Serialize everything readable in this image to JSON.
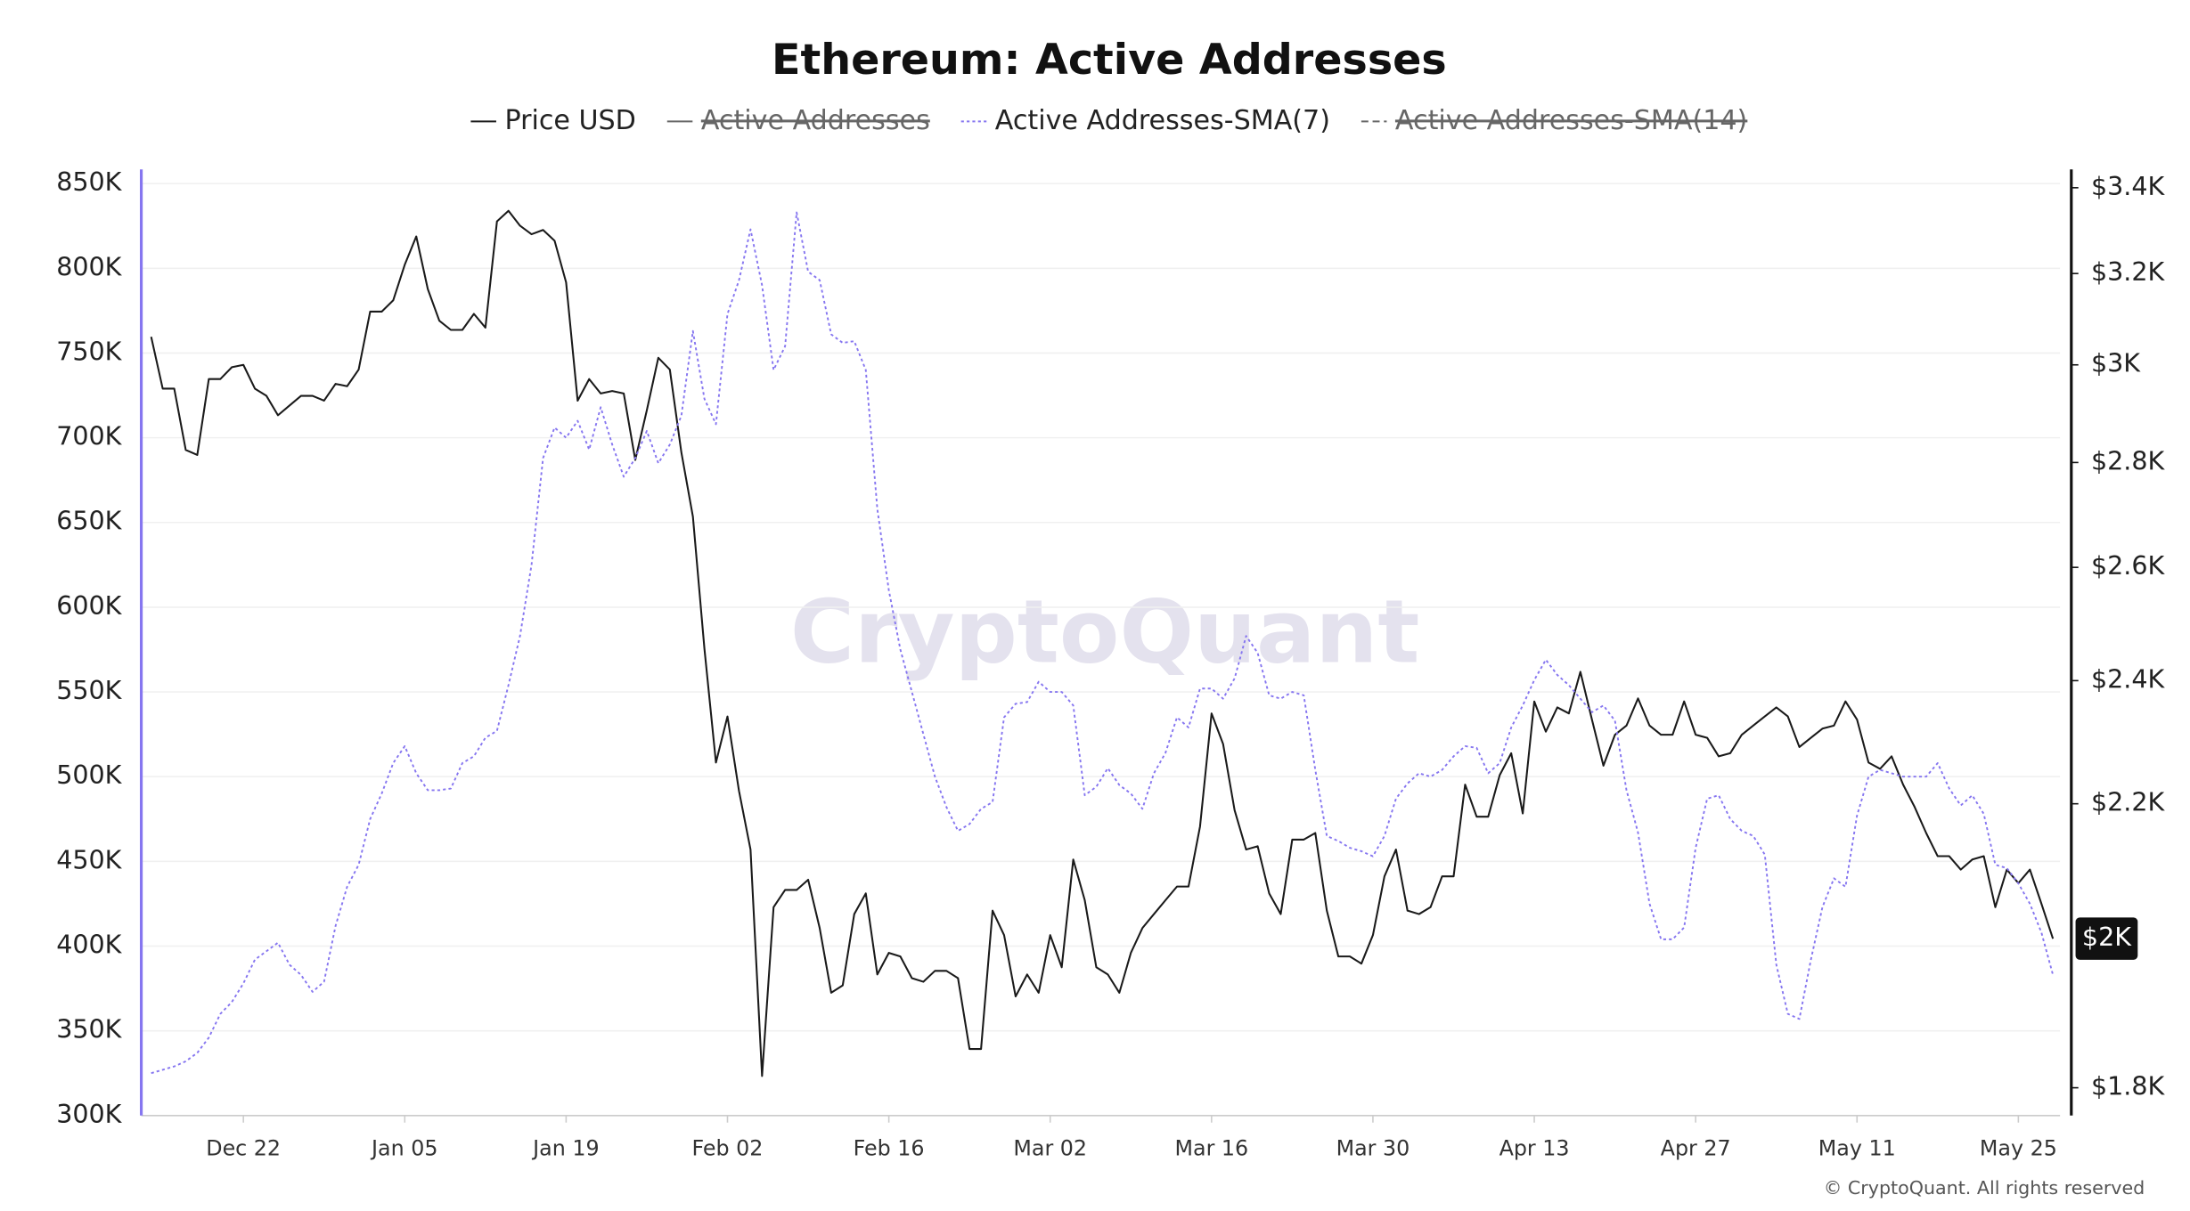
{
  "chart_data": {
    "type": "line",
    "title": "Ethereum: Active Addresses",
    "watermark": "CryptoQuant",
    "copyright": "© CryptoQuant. All rights reserved",
    "categories": [
      "Dec 14",
      "Dec 15",
      "Dec 16",
      "Dec 17",
      "Dec 18",
      "Dec 19",
      "Dec 20",
      "Dec 21",
      "Dec 22",
      "Dec 23",
      "Dec 24",
      "Dec 25",
      "Dec 26",
      "Dec 27",
      "Dec 28",
      "Dec 29",
      "Dec 30",
      "Dec 31",
      "Jan 01",
      "Jan 02",
      "Jan 03",
      "Jan 04",
      "Jan 05",
      "Jan 06",
      "Jan 07",
      "Jan 08",
      "Jan 09",
      "Jan 10",
      "Jan 11",
      "Jan 12",
      "Jan 13",
      "Jan 14",
      "Jan 15",
      "Jan 16",
      "Jan 17",
      "Jan 18",
      "Jan 19",
      "Jan 20",
      "Jan 21",
      "Jan 22",
      "Jan 23",
      "Jan 24",
      "Jan 25",
      "Jan 26",
      "Jan 27",
      "Jan 28",
      "Jan 29",
      "Jan 30",
      "Jan 31",
      "Feb 01",
      "Feb 02",
      "Feb 03",
      "Feb 04",
      "Feb 05",
      "Feb 06",
      "Feb 07",
      "Feb 08",
      "Feb 09",
      "Feb 10",
      "Feb 11",
      "Feb 12",
      "Feb 13",
      "Feb 14",
      "Feb 15",
      "Feb 16",
      "Feb 17",
      "Feb 18",
      "Feb 19",
      "Feb 20",
      "Feb 21",
      "Feb 22",
      "Feb 23",
      "Feb 24",
      "Feb 25",
      "Feb 26",
      "Feb 27",
      "Feb 28",
      "Mar 01",
      "Mar 02",
      "Mar 03",
      "Mar 04",
      "Mar 05",
      "Mar 06",
      "Mar 07",
      "Mar 08",
      "Mar 09",
      "Mar 10",
      "Mar 11",
      "Mar 12",
      "Mar 13",
      "Mar 14",
      "Mar 15",
      "Mar 16",
      "Mar 17",
      "Mar 18",
      "Mar 19",
      "Mar 20",
      "Mar 21",
      "Mar 22",
      "Mar 23",
      "Mar 24",
      "Mar 25",
      "Mar 26",
      "Mar 27",
      "Mar 28",
      "Mar 29",
      "Mar 30",
      "Mar 31",
      "Apr 01",
      "Apr 02",
      "Apr 03",
      "Apr 04",
      "Apr 05",
      "Apr 06",
      "Apr 07",
      "Apr 08",
      "Apr 09",
      "Apr 10",
      "Apr 11",
      "Apr 12",
      "Apr 13",
      "Apr 14",
      "Apr 15",
      "Apr 16",
      "Apr 17",
      "Apr 18",
      "Apr 19",
      "Apr 20",
      "Apr 21",
      "Apr 22",
      "Apr 23",
      "Apr 24",
      "Apr 25",
      "Apr 26",
      "Apr 27",
      "Apr 28",
      "Apr 29",
      "Apr 30",
      "May 01",
      "May 02",
      "May 03",
      "May 04",
      "May 05",
      "May 06",
      "May 07",
      "May 08",
      "May 09",
      "May 10",
      "May 11",
      "May 12",
      "May 13",
      "May 14",
      "May 15",
      "May 16",
      "May 17",
      "May 18",
      "May 19",
      "May 20",
      "May 21",
      "May 22",
      "May 23",
      "May 24",
      "May 25",
      "May 26",
      "May 27",
      "May 28"
    ],
    "xticks": [
      "Dec 22",
      "Jan 05",
      "Jan 19",
      "Feb 02",
      "Feb 16",
      "Mar 02",
      "Mar 16",
      "Mar 30",
      "Apr 13",
      "Apr 27",
      "May 11",
      "May 25"
    ],
    "series": [
      {
        "name": "Price USD",
        "color": "#1a1a1a",
        "style": "solid",
        "axis": "y2",
        "values": [
          3060,
          2950,
          2950,
          2825,
          2815,
          2970,
          2970,
          2995,
          3000,
          2950,
          2935,
          2895,
          2915,
          2935,
          2935,
          2925,
          2960,
          2955,
          2990,
          3115,
          3115,
          3140,
          3220,
          3285,
          3165,
          3095,
          3075,
          3075,
          3110,
          3080,
          3320,
          3345,
          3310,
          3290,
          3300,
          3275,
          3180,
          2925,
          2970,
          2940,
          2945,
          2940,
          2805,
          2905,
          3015,
          2990,
          2820,
          2695,
          2455,
          2265,
          2340,
          2220,
          2130,
          1815,
          2045,
          2070,
          2070,
          2085,
          2015,
          1925,
          1935,
          2035,
          2065,
          1950,
          1980,
          1975,
          1945,
          1940,
          1955,
          1955,
          1945,
          1850,
          1850,
          2040,
          2005,
          1920,
          1950,
          1925,
          2005,
          1960,
          2115,
          2055,
          1960,
          1950,
          1925,
          1980,
          2015,
          2035,
          2055,
          2075,
          2075,
          2165,
          2345,
          2295,
          2190,
          2130,
          2135,
          2065,
          2035,
          2145,
          2145,
          2155,
          2040,
          1975,
          1975,
          1965,
          2005,
          2090,
          2130,
          2040,
          2035,
          2045,
          2090,
          2090,
          2230,
          2180,
          2180,
          2245,
          2280,
          2185,
          2365,
          2315,
          2355,
          2345,
          2415,
          2335,
          2260,
          2310,
          2325,
          2370,
          2325,
          2310,
          2310,
          2365,
          2310,
          2305,
          2275,
          2280,
          2310,
          2325,
          2340,
          2355,
          2340,
          2290,
          2305,
          2320,
          2325,
          2365,
          2335,
          2265,
          2255,
          2275,
          2230,
          2195,
          2155,
          2120,
          2120,
          2100,
          2115,
          2120,
          2045,
          2100,
          2080,
          2100,
          2050,
          2000
        ]
      },
      {
        "name": "Active Addresses",
        "color": "#555555",
        "style": "solid",
        "hidden": true
      },
      {
        "name": "Active Addresses-SMA(7)",
        "color": "#8676f0",
        "style": "dotted",
        "values": [
          325000,
          327000,
          329000,
          332000,
          337000,
          346000,
          360000,
          367000,
          378000,
          392000,
          397000,
          402000,
          389000,
          383000,
          373000,
          379000,
          412000,
          435000,
          448000,
          475000,
          490000,
          508000,
          518000,
          502000,
          492000,
          492000,
          493000,
          508000,
          512000,
          523000,
          527000,
          554000,
          583000,
          625000,
          688000,
          706000,
          700000,
          710000,
          693000,
          718000,
          696000,
          677000,
          688000,
          704000,
          685000,
          696000,
          713000,
          763000,
          723000,
          708000,
          773000,
          793000,
          823000,
          790000,
          740000,
          754000,
          833000,
          798000,
          793000,
          761000,
          756000,
          757000,
          740000,
          658000,
          610000,
          575000,
          550000,
          525000,
          500000,
          482000,
          468000,
          472000,
          481000,
          485000,
          535000,
          543000,
          544000,
          556000,
          550000,
          550000,
          542000,
          489000,
          494000,
          505000,
          495000,
          490000,
          481000,
          502000,
          514000,
          535000,
          529000,
          552000,
          552000,
          546000,
          558000,
          583000,
          573000,
          548000,
          546000,
          550000,
          548000,
          504000,
          465000,
          462000,
          458000,
          456000,
          453000,
          465000,
          487000,
          496000,
          502000,
          500000,
          504000,
          512000,
          518000,
          517000,
          502000,
          508000,
          529000,
          542000,
          557000,
          569000,
          560000,
          554000,
          546000,
          538000,
          542000,
          533000,
          492000,
          467000,
          425000,
          404000,
          404000,
          411000,
          458000,
          487000,
          489000,
          475000,
          468000,
          465000,
          454000,
          389000,
          360000,
          357000,
          392000,
          423000,
          440000,
          435000,
          477000,
          500000,
          504000,
          502000,
          500000,
          500000,
          500000,
          508000,
          493000,
          483000,
          489000,
          478000,
          448000,
          446000,
          437000,
          425000,
          408000,
          383000
        ]
      },
      {
        "name": "Active Addresses-SMA(14)",
        "color": "#8676f0",
        "style": "dashed",
        "hidden": true
      }
    ],
    "ylim": [
      300000,
      850000
    ],
    "yticks": [
      {
        "value": 300000,
        "label": "300K"
      },
      {
        "value": 350000,
        "label": "350K"
      },
      {
        "value": 400000,
        "label": "400K"
      },
      {
        "value": 450000,
        "label": "450K"
      },
      {
        "value": 500000,
        "label": "500K"
      },
      {
        "value": 550000,
        "label": "550K"
      },
      {
        "value": 600000,
        "label": "600K"
      },
      {
        "value": 650000,
        "label": "650K"
      },
      {
        "value": 700000,
        "label": "700K"
      },
      {
        "value": 750000,
        "label": "750K"
      },
      {
        "value": 800000,
        "label": "800K"
      },
      {
        "value": 850000,
        "label": "850K"
      }
    ],
    "y2lim": [
      1765,
      3410
    ],
    "y2log": true,
    "y2ticks": [
      {
        "value": 1800,
        "label": "$1.8K"
      },
      {
        "value": 2200,
        "label": "$2.2K"
      },
      {
        "value": 2400,
        "label": "$2.4K"
      },
      {
        "value": 2600,
        "label": "$2.6K"
      },
      {
        "value": 2800,
        "label": "$2.8K"
      },
      {
        "value": 3000,
        "label": "$3K"
      },
      {
        "value": 3200,
        "label": "$3.2K"
      },
      {
        "value": 3400,
        "label": "$3.4K"
      }
    ],
    "current_price": {
      "value": 2000,
      "label": "$2K"
    },
    "grid": true
  }
}
